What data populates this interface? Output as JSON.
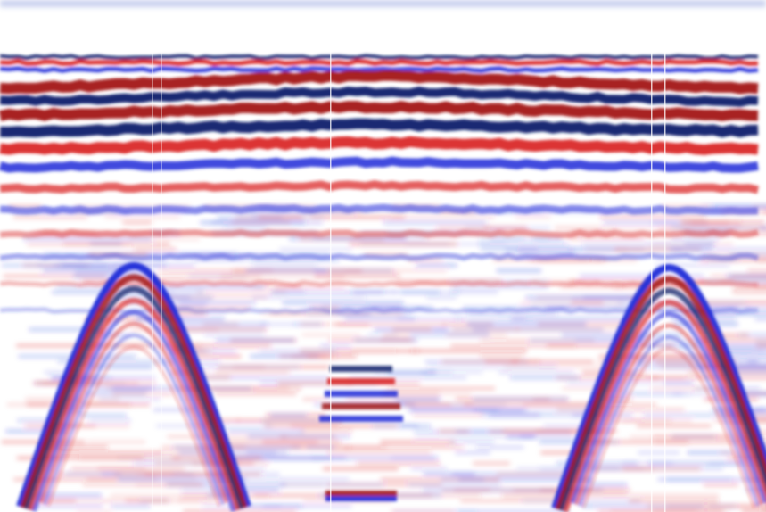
{
  "image": {
    "subject": "gpr-radargram",
    "palette": {
      "positive": "#d81e1e",
      "positive_strong": "#a31515",
      "negative": "#1e2ad8",
      "negative_strong": "#0a1f6b",
      "background": "#ffffff"
    }
  }
}
